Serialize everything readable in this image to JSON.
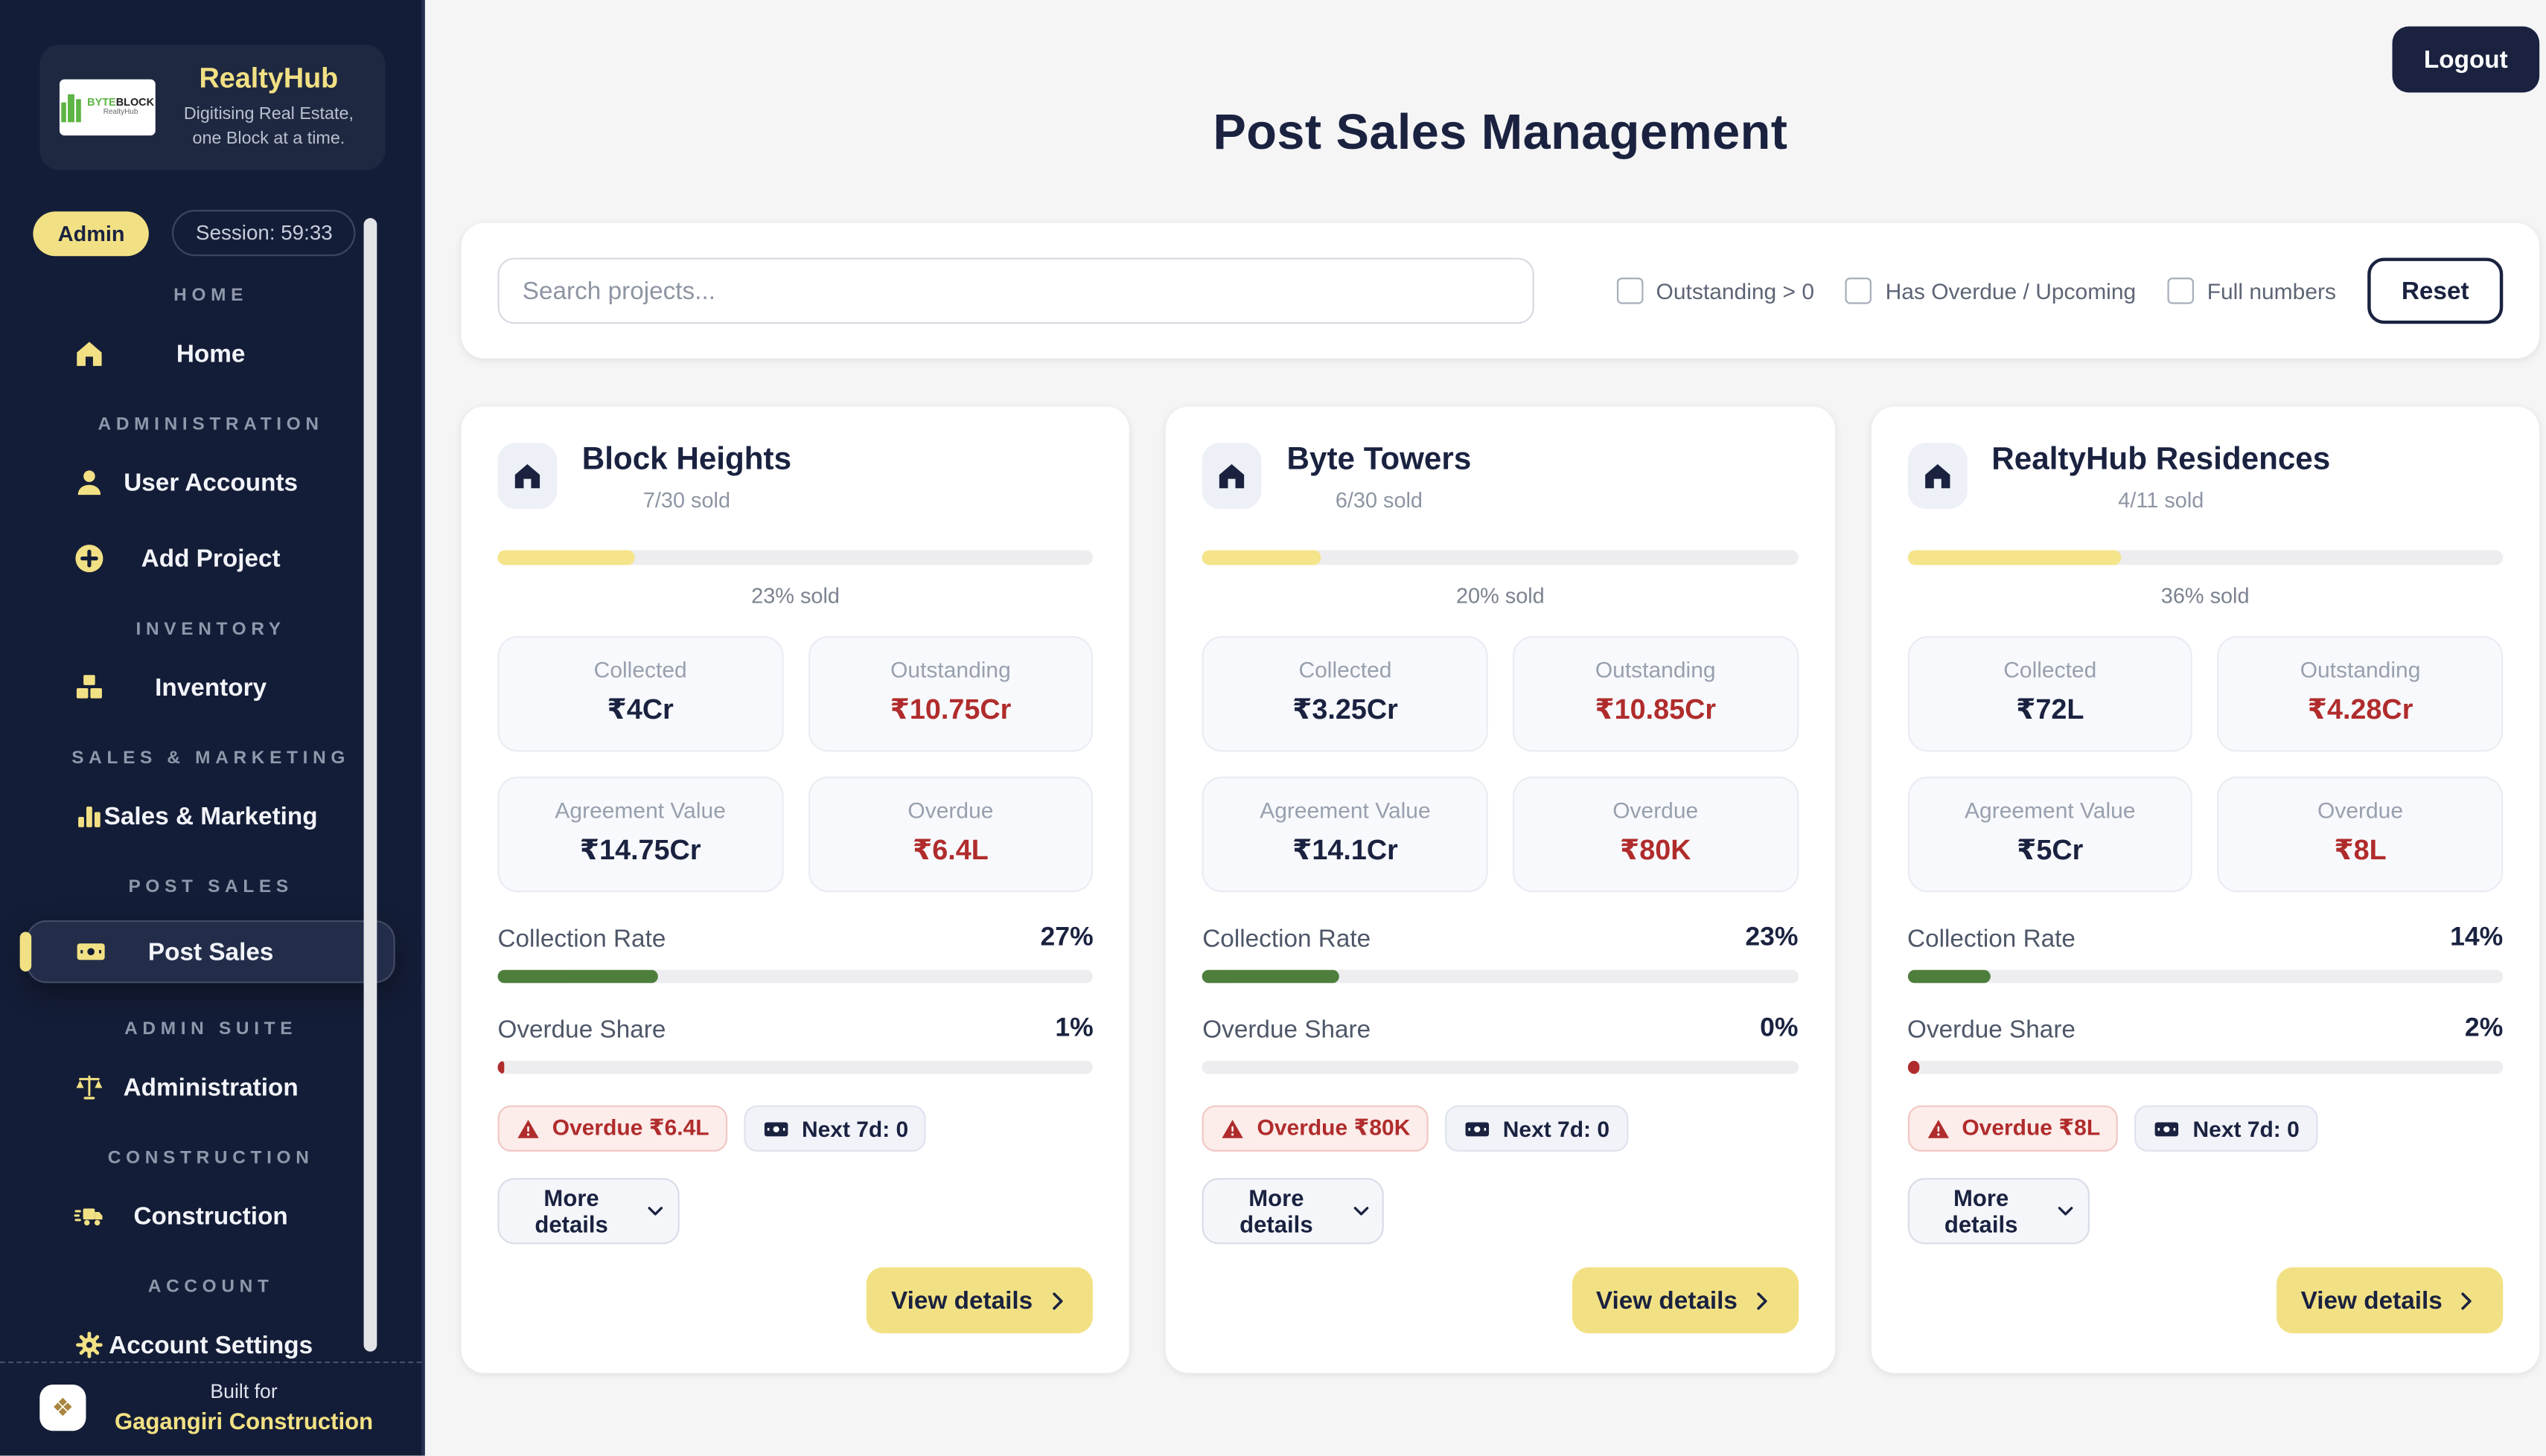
{
  "colors": {
    "sidebar_bg": "#141d37",
    "accent_yellow": "#f2e184",
    "navy": "#1a2240",
    "red": "#b02c2c",
    "green": "#4e7e3c"
  },
  "sidebar": {
    "brand": {
      "logo_byte": "BYTE",
      "logo_block": "BLOCK",
      "logo_sub": "RealtyHub",
      "title": "RealtyHub",
      "tagline": "Digitising Real Estate, one Block at a time."
    },
    "role_badge": "Admin",
    "session_badge": "Session: 59:33",
    "sections": [
      {
        "label": "HOME",
        "items": [
          {
            "label": "Home",
            "icon": "home-icon"
          }
        ]
      },
      {
        "label": "ADMINISTRATION",
        "items": [
          {
            "label": "User Accounts",
            "icon": "user-icon"
          },
          {
            "label": "Add Project",
            "icon": "plus-circle-icon"
          }
        ]
      },
      {
        "label": "INVENTORY",
        "items": [
          {
            "label": "Inventory",
            "icon": "boxes-icon"
          }
        ]
      },
      {
        "label": "SALES & MARKETING",
        "items": [
          {
            "label": "Sales & Marketing",
            "icon": "bar-chart-icon"
          }
        ]
      },
      {
        "label": "POST SALES",
        "items": [
          {
            "label": "Post Sales",
            "icon": "banknote-icon",
            "active": true
          }
        ]
      },
      {
        "label": "ADMIN SUITE",
        "items": [
          {
            "label": "Administration",
            "icon": "scales-icon"
          }
        ]
      },
      {
        "label": "CONSTRUCTION",
        "items": [
          {
            "label": "Construction",
            "icon": "truck-icon"
          }
        ]
      },
      {
        "label": "ACCOUNT",
        "items": [
          {
            "label": "Account Settings",
            "icon": "gear-icon"
          }
        ]
      }
    ],
    "footer": {
      "built_for": "Built for",
      "company": "Gagangiri Construction"
    }
  },
  "header": {
    "title": "Post Sales Management",
    "logout_label": "Logout"
  },
  "filters": {
    "search_placeholder": "Search projects...",
    "checkboxes": [
      "Outstanding > 0",
      "Has Overdue / Upcoming",
      "Full numbers"
    ],
    "reset_label": "Reset"
  },
  "cards": [
    {
      "name": "Block Heights",
      "sold": "7/30 sold",
      "pct_sold": 23,
      "pct_sold_label": "23% sold",
      "stats": {
        "collected_label": "Collected",
        "collected": "₹4Cr",
        "outstanding_label": "Outstanding",
        "outstanding": "₹10.75Cr",
        "agreement_label": "Agreement Value",
        "agreement": "₹14.75Cr",
        "overdue_label": "Overdue",
        "overdue": "₹6.4L"
      },
      "collection": {
        "label": "Collection Rate",
        "value": "27%",
        "pct": 27
      },
      "share": {
        "label": "Overdue Share",
        "value": "1%",
        "pct": 1
      },
      "overdue_badge": "Overdue ₹6.4L",
      "next7d_badge": "Next 7d: 0",
      "more_label": "More details",
      "view_label": "View details"
    },
    {
      "name": "Byte Towers",
      "sold": "6/30 sold",
      "pct_sold": 20,
      "pct_sold_label": "20% sold",
      "stats": {
        "collected_label": "Collected",
        "collected": "₹3.25Cr",
        "outstanding_label": "Outstanding",
        "outstanding": "₹10.85Cr",
        "agreement_label": "Agreement Value",
        "agreement": "₹14.1Cr",
        "overdue_label": "Overdue",
        "overdue": "₹80K"
      },
      "collection": {
        "label": "Collection Rate",
        "value": "23%",
        "pct": 23
      },
      "share": {
        "label": "Overdue Share",
        "value": "0%",
        "pct": 0
      },
      "overdue_badge": "Overdue ₹80K",
      "next7d_badge": "Next 7d: 0",
      "more_label": "More details",
      "view_label": "View details"
    },
    {
      "name": "RealtyHub Residences",
      "sold": "4/11 sold",
      "pct_sold": 36,
      "pct_sold_label": "36% sold",
      "stats": {
        "collected_label": "Collected",
        "collected": "₹72L",
        "outstanding_label": "Outstanding",
        "outstanding": "₹4.28Cr",
        "agreement_label": "Agreement Value",
        "agreement": "₹5Cr",
        "overdue_label": "Overdue",
        "overdue": "₹8L"
      },
      "collection": {
        "label": "Collection Rate",
        "value": "14%",
        "pct": 14
      },
      "share": {
        "label": "Overdue Share",
        "value": "2%",
        "pct": 2
      },
      "overdue_badge": "Overdue ₹8L",
      "next7d_badge": "Next 7d: 0",
      "more_label": "More details",
      "view_label": "View details"
    }
  ]
}
